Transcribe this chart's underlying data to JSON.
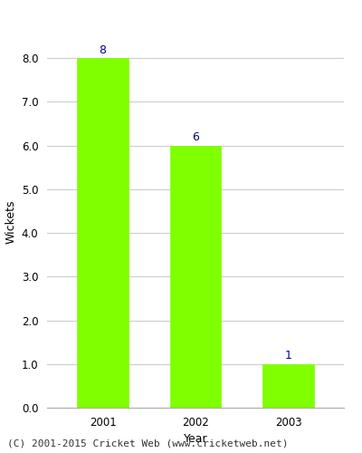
{
  "categories": [
    "2001",
    "2002",
    "2003"
  ],
  "values": [
    8,
    6,
    1
  ],
  "bar_color": "#7FFF00",
  "bar_edge_color": "#7FFF00",
  "title": "",
  "xlabel": "Year",
  "ylabel": "Wickets",
  "ylim": [
    0,
    8.5
  ],
  "yticks": [
    0.0,
    1.0,
    2.0,
    3.0,
    4.0,
    5.0,
    6.0,
    7.0,
    8.0
  ],
  "annotation_color": "#00008B",
  "annotation_fontsize": 9,
  "axis_label_fontsize": 9,
  "tick_fontsize": 8.5,
  "background_color": "#ffffff",
  "footer_text": "(C) 2001-2015 Cricket Web (www.cricketweb.net)",
  "footer_fontsize": 8,
  "grid_color": "#cccccc",
  "bar_width": 0.55
}
